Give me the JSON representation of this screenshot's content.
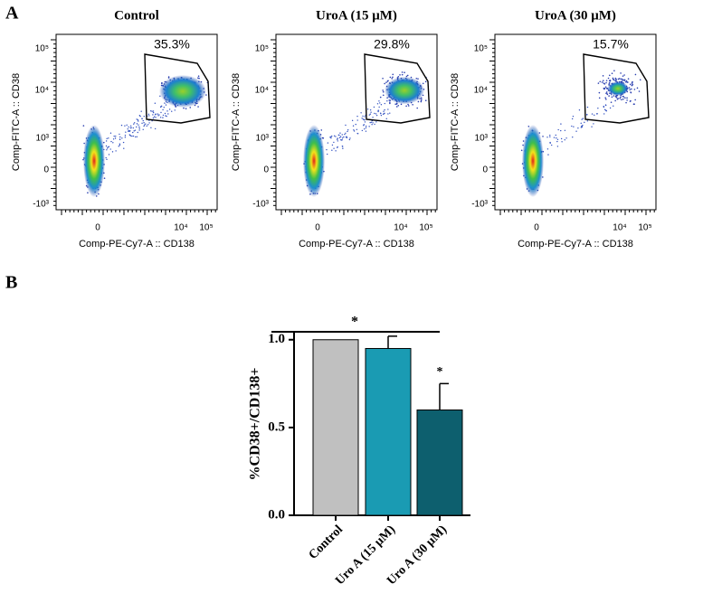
{
  "panel_a": {
    "label": "A",
    "plots": [
      {
        "title": "Control",
        "gate_label": "35.3%",
        "x_label": "Comp-PE-Cy7-A :: CD138",
        "y_label": "Comp-FITC-A :: CD38"
      },
      {
        "title": "UroA (15 μM)",
        "gate_label": "29.8%",
        "x_label": "Comp-PE-Cy7-A :: CD138",
        "y_label": "Comp-FITC-A :: CD38"
      },
      {
        "title": "UroA (30 μM)",
        "gate_label": "15.7%",
        "x_label": "Comp-PE-Cy7-A :: CD138",
        "y_label": "Comp-FITC-A :: CD38"
      }
    ],
    "x_tick_labels": [
      "0",
      "10⁴",
      "10⁵"
    ],
    "y_tick_labels": [
      "10⁵",
      "10⁴",
      "10³",
      "0",
      "-10³"
    ]
  },
  "chart_data": {
    "type": "bar",
    "label": "B",
    "y_label": "%CD38+/CD138+",
    "categories": [
      "Control",
      "Uro A (15 μM)",
      "Uro A (30 μM)"
    ],
    "values": [
      1.0,
      0.95,
      0.6
    ],
    "errors": [
      0,
      0.07,
      0.15
    ],
    "colors": [
      "#c0c0c0",
      "#1a9bb3",
      "#0d5f6e"
    ],
    "ylim": [
      0,
      1.04
    ],
    "yticks": [
      {
        "value": 0,
        "label": "0.0"
      },
      {
        "value": 0.5,
        "label": "0.5"
      },
      {
        "value": 1,
        "label": "1.0"
      }
    ],
    "annotations": [
      "*",
      "*"
    ]
  }
}
